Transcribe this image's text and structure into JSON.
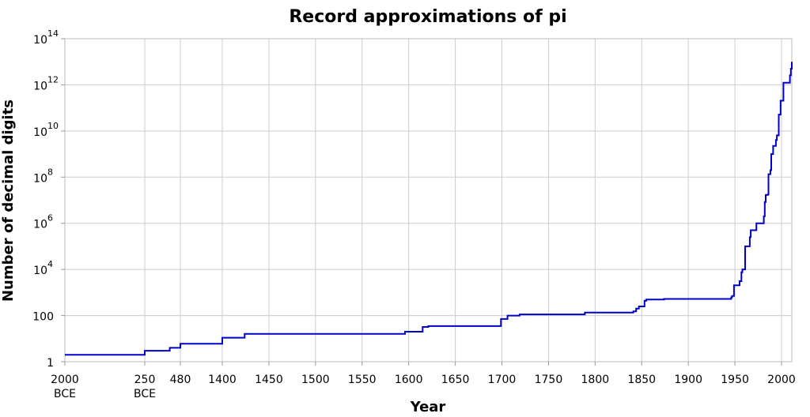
{
  "chart_data": {
    "type": "line",
    "title": "Record approximations of pi",
    "xlabel": "Year",
    "ylabel": "Number of decimal digits",
    "yscale": "log",
    "ylim": [
      1,
      100000000000000
    ],
    "xscale": "piecewise (compressed before 1400)",
    "grid": true,
    "line_color": "#0000cc",
    "x_ticks": [
      {
        "value": -2000,
        "label": "2000",
        "sub": "BCE"
      },
      {
        "value": -250,
        "label": "250",
        "sub": "BCE"
      },
      {
        "value": 480,
        "label": "480"
      },
      {
        "value": 1400,
        "label": "1400"
      },
      {
        "value": 1450,
        "label": "1450"
      },
      {
        "value": 1500,
        "label": "1500"
      },
      {
        "value": 1550,
        "label": "1550"
      },
      {
        "value": 1600,
        "label": "1600"
      },
      {
        "value": 1650,
        "label": "1650"
      },
      {
        "value": 1700,
        "label": "1700"
      },
      {
        "value": 1750,
        "label": "1750"
      },
      {
        "value": 1800,
        "label": "1800"
      },
      {
        "value": 1850,
        "label": "1850"
      },
      {
        "value": 1900,
        "label": "1900"
      },
      {
        "value": 1950,
        "label": "1950"
      },
      {
        "value": 2000,
        "label": "2000"
      }
    ],
    "y_ticks": [
      {
        "value": 1,
        "label": "1",
        "exp": ""
      },
      {
        "value": 100,
        "label": "100",
        "exp": ""
      },
      {
        "value": 10000,
        "label": "10",
        "exp": "4"
      },
      {
        "value": 1000000,
        "label": "10",
        "exp": "6"
      },
      {
        "value": 100000000,
        "label": "10",
        "exp": "8"
      },
      {
        "value": 10000000000,
        "label": "10",
        "exp": "10"
      },
      {
        "value": 1000000000000,
        "label": "10",
        "exp": "12"
      },
      {
        "value": 100000000000000,
        "label": "10",
        "exp": "14"
      }
    ],
    "series": [
      {
        "x": [
          -2000,
          -250,
          263,
          480,
          1400,
          1424,
          1596,
          1615,
          1621,
          1699,
          1706,
          1719,
          1789,
          1841,
          1844,
          1847,
          1853,
          1855,
          1874,
          1946,
          1947,
          1949,
          1955,
          1957,
          1958,
          1961,
          1966,
          1967,
          1973,
          1981,
          1982,
          1983,
          1985,
          1986,
          1987,
          1988,
          1989,
          1991,
          1994,
          1995,
          1997,
          1999,
          2002,
          2009,
          2010,
          2011
        ],
        "y": [
          2,
          3,
          4,
          6,
          11,
          16,
          20,
          32,
          35,
          71,
          100,
          112,
          136,
          152,
          200,
          248,
          440,
          500,
          527,
          620,
          710,
          2037,
          3089,
          7480,
          10000,
          100265,
          250000,
          500000,
          1001250,
          2000036,
          8388576,
          16777206,
          17526200,
          134214700,
          134217700,
          201326551,
          1000000000,
          2260000000,
          4044000000,
          6442450938,
          51539600000,
          206158430000,
          1241100000000,
          2576980370000,
          5000000000000,
          10000000000000
        ]
      }
    ]
  }
}
